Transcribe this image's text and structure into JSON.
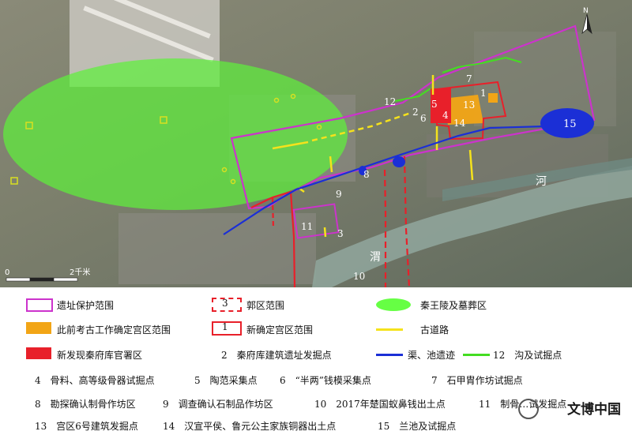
{
  "map": {
    "north_label": "N",
    "scale_labels": [
      "0",
      "2千米"
    ],
    "numbered_labels": [
      "1",
      "2",
      "3",
      "4",
      "5",
      "6",
      "7",
      "8",
      "9",
      "10",
      "11",
      "12",
      "13",
      "14",
      "15"
    ],
    "river_label": "渭",
    "river_label_2": "河"
  },
  "legend": {
    "items": [
      {
        "label": "遗址保护范围",
        "swatch": "magenta-outline"
      },
      {
        "label": "郭区范围",
        "number": "3",
        "swatch": "red-dashed-box"
      },
      {
        "label": "秦王陵及墓葬区",
        "swatch": "green-ellipse"
      },
      {
        "label": "此前考古工作确定宫区范围",
        "swatch": "orange-fill"
      },
      {
        "label": "新确定宫区范围",
        "number": "1",
        "swatch": "red-outline-box"
      },
      {
        "label": "古道路",
        "swatch": "yellow-line"
      },
      {
        "label": "新发现秦府库官署区",
        "swatch": "red-fill"
      },
      {
        "label": "2　秦府库建筑遗址发掘点"
      },
      {
        "label": "渠、池遗迹",
        "swatch": "blue-line"
      },
      {
        "label": "12　沟及试掘点",
        "swatch": "green-line"
      }
    ],
    "notes_row1": [
      "4　骨料、高等级骨器试掘点",
      "5　陶范采集点",
      "6　“半两”钱模采集点",
      "7　石甲胄作坊试掘点"
    ],
    "notes_row2": [
      "8　勘探确认制骨作坊区",
      "9　调查确认石制品作坊区",
      "10　2017年楚国蚁鼻钱出土点",
      "11　制骨…试发掘点"
    ],
    "notes_row3": [
      "13　宫区6号建筑发掘点",
      "14　汉宣平侯、鲁元公主家族铜器出土点",
      "15　兰池及试掘点"
    ],
    "watermark": "文博中国"
  },
  "colors": {
    "protection": "#cc33cc",
    "palace_red": "#e8202a",
    "orange": "#f2a516",
    "green_zone": "#66ff44",
    "road": "#f5e21c",
    "canal": "#1b2fd6",
    "ditch": "#44dd22"
  }
}
